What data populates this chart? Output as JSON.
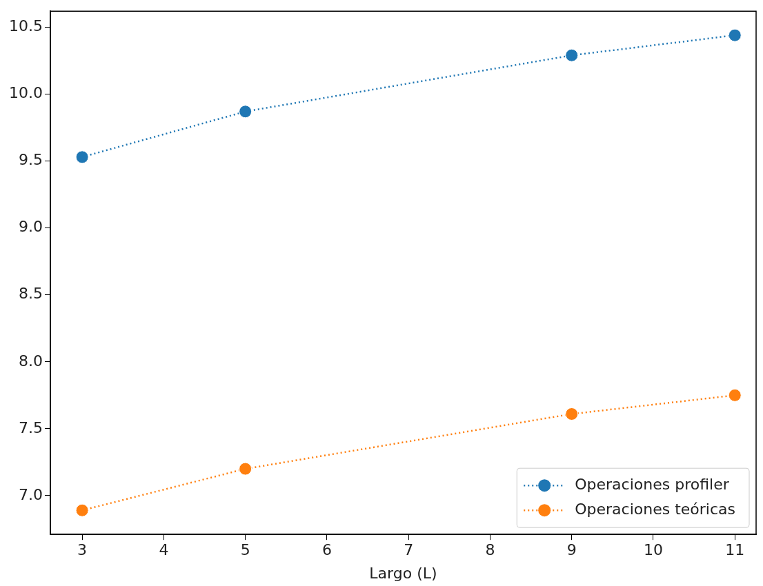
{
  "chart_data": {
    "type": "line",
    "xlabel": "Largo (L)",
    "x": [
      3,
      5,
      9,
      11
    ],
    "series": [
      {
        "name": "Operaciones profiler",
        "color": "#1f77b4",
        "values": [
          9.53,
          9.87,
          10.29,
          10.44
        ]
      },
      {
        "name": "Operaciones teóricas",
        "color": "#ff7f0e",
        "values": [
          6.89,
          7.2,
          7.61,
          7.75
        ]
      }
    ],
    "xlim": [
      2.61,
      11.26
    ],
    "xticks": [
      3,
      4,
      5,
      6,
      7,
      8,
      9,
      10,
      11
    ],
    "ylim": [
      6.71,
      10.62
    ],
    "yticks": [
      {
        "value": 7,
        "label": "7.0"
      },
      {
        "value": 7.5,
        "label": "7.5"
      },
      {
        "value": 8,
        "label": "8.0"
      },
      {
        "value": 8.5,
        "label": "8.5"
      },
      {
        "value": 9,
        "label": "9.0"
      },
      {
        "value": 9.5,
        "label": "9.5"
      },
      {
        "value": 10,
        "label": "10.0"
      },
      {
        "value": 10.5,
        "label": "10.5"
      }
    ],
    "grid": false,
    "legend": "bottom right",
    "marker": "circle",
    "line_style": "dotted"
  }
}
